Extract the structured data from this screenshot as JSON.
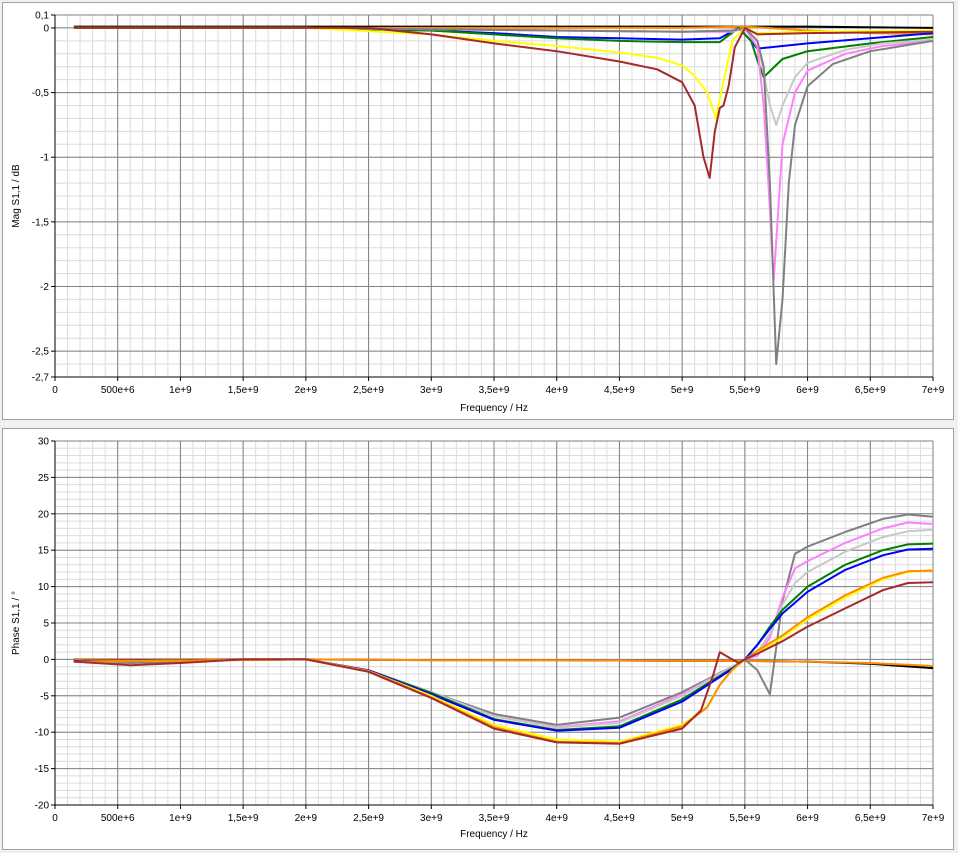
{
  "chart_data": [
    {
      "type": "line",
      "xlabel": "Frequency / Hz",
      "ylabel": "Mag S1,1 / dB",
      "xlim": [
        0,
        7000000000
      ],
      "ylim": [
        -2.7,
        0.1
      ],
      "x_ticks": [
        0,
        500000000,
        1000000000,
        1500000000,
        2000000000,
        2500000000,
        3000000000,
        3500000000,
        4000000000,
        4500000000,
        5000000000,
        5500000000,
        6000000000,
        6500000000,
        7000000000
      ],
      "x_tick_labels": [
        "0",
        "500e+6",
        "1e+9",
        "1,5e+9",
        "2e+9",
        "2,5e+9",
        "3e+9",
        "3,5e+9",
        "4e+9",
        "4,5e+9",
        "5e+9",
        "5,5e+9",
        "6e+9",
        "6,5e+9",
        "7e+9"
      ],
      "y_ticks": [
        0.1,
        0,
        -0.5,
        -1,
        -1.5,
        -2,
        -2.5,
        -2.7
      ],
      "y_tick_labels": [
        "0,1",
        "0",
        "-0,5",
        "-1",
        "-1,5",
        "-2",
        "-2,5",
        "-2,7"
      ],
      "grid": true,
      "series": [
        {
          "color": "#000000",
          "x": [
            150000000.0,
            1000000000.0,
            2000000000.0,
            3000000000.0,
            4000000000.0,
            5000000000.0,
            5500000000.0,
            6000000000.0,
            7000000000.0
          ],
          "values": [
            0.01,
            0.01,
            0.01,
            0.01,
            0.01,
            0.01,
            0.01,
            0.01,
            0.0
          ]
        },
        {
          "color": "#ff8c00",
          "x": [
            150000000.0,
            1000000000.0,
            2000000000.0,
            3000000000.0,
            4000000000.0,
            5000000000.0,
            5500000000.0,
            6000000000.0,
            6500000000.0,
            7000000000.0
          ],
          "values": [
            0.0,
            0.0,
            0.0,
            0.0,
            0.0,
            0.0,
            0.01,
            -0.02,
            -0.04,
            -0.05
          ]
        },
        {
          "color": "#0000ff",
          "x": [
            150000000.0,
            2000000000.0,
            3000000000.0,
            3500000000.0,
            4000000000.0,
            4500000000.0,
            5000000000.0,
            5300000000.0,
            5450000000.0,
            5550000000.0,
            5600000000.0,
            5800000000.0,
            6000000000.0,
            6500000000.0,
            7000000000.0
          ],
          "values": [
            0.0,
            0.0,
            -0.02,
            -0.04,
            -0.07,
            -0.08,
            -0.09,
            -0.08,
            0.0,
            -0.1,
            -0.16,
            -0.14,
            -0.12,
            -0.08,
            -0.04
          ]
        },
        {
          "color": "#008000",
          "x": [
            150000000.0,
            2000000000.0,
            3000000000.0,
            3500000000.0,
            4000000000.0,
            4500000000.0,
            5000000000.0,
            5300000000.0,
            5450000000.0,
            5550000000.0,
            5600000000.0,
            5650000000.0,
            5800000000.0,
            6000000000.0,
            6500000000.0,
            7000000000.0
          ],
          "values": [
            0.0,
            0.0,
            -0.02,
            -0.05,
            -0.08,
            -0.1,
            -0.11,
            -0.11,
            0.0,
            -0.1,
            -0.25,
            -0.38,
            -0.24,
            -0.18,
            -0.12,
            -0.07
          ]
        },
        {
          "color": "#c8c8c8",
          "x": [
            150000000.0,
            2000000000.0,
            3000000000.0,
            4000000000.0,
            5000000000.0,
            5400000000.0,
            5500000000.0,
            5600000000.0,
            5700000000.0,
            5750000000.0,
            5800000000.0,
            5900000000.0,
            6000000000.0,
            6300000000.0,
            6600000000.0,
            7000000000.0
          ],
          "values": [
            0.0,
            0.0,
            -0.01,
            -0.02,
            -0.03,
            -0.02,
            0.0,
            -0.1,
            -0.6,
            -0.75,
            -0.6,
            -0.38,
            -0.27,
            -0.17,
            -0.12,
            -0.09
          ]
        },
        {
          "color": "#ff80ff",
          "x": [
            150000000.0,
            2000000000.0,
            3000000000.0,
            4000000000.0,
            5000000000.0,
            5400000000.0,
            5500000000.0,
            5600000000.0,
            5650000000.0,
            5700000000.0,
            5730000000.0,
            5760000000.0,
            5800000000.0,
            5900000000.0,
            6000000000.0,
            6300000000.0,
            6600000000.0,
            7000000000.0
          ],
          "values": [
            0.0,
            0.0,
            -0.01,
            -0.02,
            -0.03,
            -0.03,
            0.0,
            -0.15,
            -0.6,
            -1.4,
            -1.95,
            -1.5,
            -0.9,
            -0.5,
            -0.33,
            -0.2,
            -0.14,
            -0.1
          ]
        },
        {
          "color": "#808080",
          "x": [
            150000000.0,
            2000000000.0,
            3000000000.0,
            4000000000.0,
            5000000000.0,
            5400000000.0,
            5500000000.0,
            5600000000.0,
            5650000000.0,
            5700000000.0,
            5750000000.0,
            5800000000.0,
            5850000000.0,
            5900000000.0,
            6000000000.0,
            6200000000.0,
            6500000000.0,
            7000000000.0
          ],
          "values": [
            0.0,
            0.0,
            -0.01,
            -0.02,
            -0.03,
            -0.02,
            0.0,
            -0.1,
            -0.3,
            -1.2,
            -2.6,
            -2.1,
            -1.2,
            -0.75,
            -0.45,
            -0.28,
            -0.18,
            -0.1
          ]
        },
        {
          "color": "#ffff00",
          "x": [
            150000000.0,
            2000000000.0,
            3000000000.0,
            3500000000.0,
            4000000000.0,
            4500000000.0,
            4800000000.0,
            5000000000.0,
            5100000000.0,
            5200000000.0,
            5270000000.0,
            5300000000.0,
            5400000000.0,
            5500000000.0,
            5600000000.0,
            6000000000.0,
            7000000000.0
          ],
          "values": [
            0.0,
            0.0,
            -0.05,
            -0.1,
            -0.14,
            -0.19,
            -0.23,
            -0.29,
            -0.37,
            -0.5,
            -0.7,
            -0.55,
            -0.1,
            0.0,
            -0.04,
            -0.03,
            -0.02
          ]
        },
        {
          "color": "#a52a2a",
          "x": [
            150000000.0,
            2000000000.0,
            2500000000.0,
            3000000000.0,
            3500000000.0,
            4000000000.0,
            4500000000.0,
            4800000000.0,
            5000000000.0,
            5100000000.0,
            5170000000.0,
            5220000000.0,
            5260000000.0,
            5300000000.0,
            5330000000.0,
            5370000000.0,
            5420000000.0,
            5500000000.0,
            5600000000.0,
            6000000000.0,
            7000000000.0
          ],
          "values": [
            0.0,
            0.0,
            0.0,
            -0.05,
            -0.12,
            -0.18,
            -0.26,
            -0.32,
            -0.42,
            -0.6,
            -1.0,
            -1.16,
            -0.8,
            -0.62,
            -0.6,
            -0.45,
            -0.15,
            0.0,
            -0.05,
            -0.04,
            -0.03
          ]
        }
      ]
    },
    {
      "type": "line",
      "xlabel": "Frequency / Hz",
      "ylabel": "Phase S1,1 / °",
      "xlim": [
        0,
        7000000000
      ],
      "ylim": [
        -20,
        30
      ],
      "x_ticks": [
        0,
        500000000,
        1000000000,
        1500000000,
        2000000000,
        2500000000,
        3000000000,
        3500000000,
        4000000000,
        4500000000,
        5000000000,
        5500000000,
        6000000000,
        6500000000,
        7000000000
      ],
      "x_tick_labels": [
        "0",
        "500e+6",
        "1e+9",
        "1,5e+9",
        "2e+9",
        "2,5e+9",
        "3e+9",
        "3,5e+9",
        "4e+9",
        "4,5e+9",
        "5e+9",
        "5,5e+9",
        "6e+9",
        "6,5e+9",
        "7e+9"
      ],
      "y_ticks": [
        30,
        25,
        20,
        15,
        10,
        5,
        0,
        -5,
        -10,
        -15,
        -20
      ],
      "y_tick_labels": [
        "30",
        "25",
        "20",
        "15",
        "10",
        "5",
        "0",
        "-5",
        "-10",
        "-15",
        "-20"
      ],
      "grid": true,
      "series": [
        {
          "color": "#000000",
          "x": [
            150000000.0,
            1000000000.0,
            2000000000.0,
            3000000000.0,
            4000000000.0,
            5000000000.0,
            5500000000.0,
            6000000000.0,
            6500000000.0,
            7000000000.0
          ],
          "values": [
            0.0,
            0.0,
            0.0,
            -0.1,
            -0.1,
            -0.2,
            -0.2,
            -0.3,
            -0.6,
            -1.2
          ]
        },
        {
          "color": "#ff8c00",
          "x": [
            150000000.0,
            1000000000.0,
            2000000000.0,
            3000000000.0,
            4000000000.0,
            5000000000.0,
            5500000000.0,
            6000000000.0,
            6500000000.0,
            7000000000.0
          ],
          "values": [
            0.0,
            0.0,
            0.0,
            -0.1,
            -0.1,
            -0.2,
            -0.2,
            -0.3,
            -0.5,
            -0.9
          ]
        },
        {
          "color": "#808080",
          "x": [
            150000000.0,
            600000000.0,
            1000000000.0,
            1500000000.0,
            2000000000.0,
            2500000000.0,
            3000000000.0,
            3500000000.0,
            4000000000.0,
            4500000000.0,
            5000000000.0,
            5400000000.0,
            5500000000.0,
            5600000000.0,
            5700000000.0,
            5800000000.0,
            5900000000.0,
            6000000000.0,
            6300000000.0,
            6600000000.0,
            6800000000.0,
            7000000000.0
          ],
          "values": [
            -0.2,
            -0.5,
            -0.3,
            0.0,
            0.0,
            -1.5,
            -4.5,
            -7.5,
            -9.0,
            -8.0,
            -4.5,
            -1.0,
            0.0,
            -1.5,
            -4.8,
            8.0,
            14.5,
            15.5,
            17.5,
            19.3,
            19.9,
            19.6
          ]
        },
        {
          "color": "#ff80ff",
          "x": [
            150000000.0,
            2000000000.0,
            2500000000.0,
            3000000000.0,
            3500000000.0,
            4000000000.0,
            4500000000.0,
            5000000000.0,
            5400000000.0,
            5500000000.0,
            5600000000.0,
            5700000000.0,
            5800000000.0,
            5900000000.0,
            6000000000.0,
            6300000000.0,
            6600000000.0,
            6800000000.0,
            7000000000.0
          ],
          "values": [
            -0.2,
            0.0,
            -1.5,
            -4.5,
            -7.8,
            -9.3,
            -8.5,
            -4.8,
            -1.0,
            0.0,
            0.5,
            3.0,
            8.5,
            12.5,
            13.5,
            16.0,
            18.0,
            18.8,
            18.6
          ]
        },
        {
          "color": "#c8c8c8",
          "x": [
            150000000.0,
            2000000000.0,
            2500000000.0,
            3000000000.0,
            3500000000.0,
            4000000000.0,
            4500000000.0,
            5000000000.0,
            5400000000.0,
            5500000000.0,
            5600000000.0,
            5700000000.0,
            5800000000.0,
            5900000000.0,
            6000000000.0,
            6300000000.0,
            6600000000.0,
            6800000000.0,
            7000000000.0
          ],
          "values": [
            -0.2,
            0.0,
            -1.5,
            -4.5,
            -7.8,
            -9.4,
            -8.7,
            -5.0,
            -1.0,
            0.0,
            1.0,
            3.5,
            7.5,
            10.5,
            12.0,
            14.8,
            16.8,
            17.6,
            17.8
          ]
        },
        {
          "color": "#008000",
          "x": [
            150000000.0,
            2000000000.0,
            2500000000.0,
            3000000000.0,
            3500000000.0,
            4000000000.0,
            4500000000.0,
            5000000000.0,
            5400000000.0,
            5500000000.0,
            5600000000.0,
            5700000000.0,
            5800000000.0,
            6000000000.0,
            6300000000.0,
            6600000000.0,
            6800000000.0,
            7000000000.0
          ],
          "values": [
            -0.2,
            0.0,
            -1.5,
            -4.6,
            -8.2,
            -9.7,
            -9.2,
            -5.5,
            -1.2,
            0.0,
            2.0,
            4.5,
            6.8,
            10.0,
            13.0,
            15.0,
            15.8,
            15.9
          ]
        },
        {
          "color": "#0000ff",
          "x": [
            150000000.0,
            2000000000.0,
            2500000000.0,
            3000000000.0,
            3500000000.0,
            4000000000.0,
            4500000000.0,
            5000000000.0,
            5400000000.0,
            5500000000.0,
            5600000000.0,
            5700000000.0,
            5800000000.0,
            6000000000.0,
            6300000000.0,
            6600000000.0,
            6800000000.0,
            7000000000.0
          ],
          "values": [
            -0.2,
            0.0,
            -1.5,
            -4.8,
            -8.3,
            -9.8,
            -9.4,
            -5.8,
            -1.3,
            0.0,
            2.0,
            4.2,
            6.3,
            9.3,
            12.3,
            14.3,
            15.1,
            15.2
          ]
        },
        {
          "color": "#ffff00",
          "x": [
            150000000.0,
            2000000000.0,
            2500000000.0,
            3000000000.0,
            3500000000.0,
            4000000000.0,
            4500000000.0,
            5000000000.0,
            5200000000.0,
            5300000000.0,
            5400000000.0,
            5500000000.0,
            5600000000.0,
            5800000000.0,
            6000000000.0,
            6300000000.0,
            6600000000.0,
            6800000000.0,
            7000000000.0
          ],
          "values": [
            -0.3,
            0.0,
            -1.6,
            -5.0,
            -9.0,
            -11.0,
            -11.3,
            -9.0,
            -6.5,
            -3.5,
            -1.5,
            0.0,
            1.0,
            3.0,
            5.5,
            8.5,
            11.0,
            12.0,
            12.3
          ]
        },
        {
          "color": "#ff8c00",
          "x": [
            150000000.0,
            2000000000.0,
            2500000000.0,
            3000000000.0,
            3500000000.0,
            4000000000.0,
            4500000000.0,
            5000000000.0,
            5200000000.0,
            5300000000.0,
            5400000000.0,
            5500000000.0,
            5600000000.0,
            5800000000.0,
            6000000000.0,
            6300000000.0,
            6600000000.0,
            6800000000.0,
            7000000000.0
          ],
          "values": [
            -0.3,
            0.0,
            -1.6,
            -5.2,
            -9.3,
            -11.3,
            -11.5,
            -9.2,
            -6.6,
            -3.5,
            -1.4,
            0.0,
            1.2,
            3.3,
            5.8,
            8.8,
            11.2,
            12.1,
            12.2
          ]
        },
        {
          "color": "#a52a2a",
          "x": [
            150000000.0,
            600000000.0,
            1000000000.0,
            1500000000.0,
            2000000000.0,
            2500000000.0,
            3000000000.0,
            3500000000.0,
            4000000000.0,
            4500000000.0,
            5000000000.0,
            5150000000.0,
            5250000000.0,
            5300000000.0,
            5350000000.0,
            5450000000.0,
            5500000000.0,
            5600000000.0,
            5800000000.0,
            6000000000.0,
            6300000000.0,
            6600000000.0,
            6800000000.0,
            7000000000.0
          ],
          "values": [
            -0.3,
            -0.8,
            -0.5,
            0.0,
            0.0,
            -1.7,
            -5.3,
            -9.5,
            -11.4,
            -11.6,
            -9.5,
            -7.0,
            -2.0,
            1.0,
            0.5,
            -0.5,
            0.0,
            0.8,
            2.5,
            4.5,
            7.0,
            9.5,
            10.5,
            10.6
          ]
        }
      ]
    }
  ]
}
